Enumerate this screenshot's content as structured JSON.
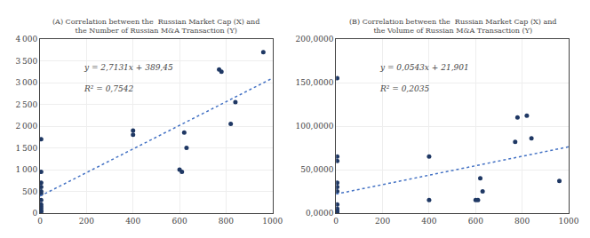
{
  "chart_data": [
    {
      "type": "scatter",
      "title": "(A) Correlation between the  Russian Market Cap (X) and\nthe Number of Russian M&A Transaction (Y)",
      "series": [
        {
          "type": "scatter",
          "color": "#1F3864",
          "x": [
            5,
            5,
            5,
            5,
            5,
            5,
            5,
            5,
            5,
            5,
            5,
            5,
            400,
            400,
            600,
            610,
            620,
            630,
            770,
            780,
            820,
            840,
            960
          ],
          "values": [
            1700,
            950,
            700,
            600,
            500,
            450,
            300,
            200,
            150,
            100,
            50,
            30,
            1900,
            1800,
            1000,
            950,
            1850,
            1500,
            3300,
            3250,
            2050,
            2550,
            3700
          ]
        },
        {
          "type": "line",
          "color": "#4472C4",
          "line_style": "dotted",
          "x": [
            0,
            1000
          ],
          "values": [
            389.45,
            3102.55
          ]
        }
      ],
      "annotations": [
        "y = 2,7131x + 389,45",
        "R² = 0,7542"
      ],
      "xlim": [
        0,
        1000
      ],
      "xticks": [
        0,
        200,
        400,
        600,
        800,
        1000
      ],
      "ylim": [
        0,
        4000
      ],
      "yticks": [
        0,
        500,
        {
          "value": 1000,
          "label": "1 000"
        },
        {
          "value": 1500,
          "label": "1 500"
        },
        {
          "value": 2000,
          "label": "2 000"
        },
        {
          "value": 2500,
          "label": "2 500"
        },
        {
          "value": 3000,
          "label": "3 000"
        },
        {
          "value": 3500,
          "label": "3 500"
        },
        {
          "value": 4000,
          "label": "4 000"
        }
      ],
      "grid": true
    },
    {
      "type": "scatter",
      "title": "(B) Correlation between the  Russian Market Cap (X) and\nthe Volume of Russian M&A Transaction (Y)",
      "series": [
        {
          "type": "scatter",
          "color": "#1F3864",
          "x": [
            5,
            5,
            5,
            5,
            5,
            5,
            5,
            5,
            5,
            5,
            5,
            400,
            400,
            600,
            610,
            620,
            630,
            770,
            780,
            820,
            840,
            960
          ],
          "values": [
            155000,
            65000,
            60000,
            35000,
            30000,
            25000,
            10000,
            5000,
            3000,
            1000,
            500,
            65000,
            15000,
            15000,
            15000,
            40000,
            25000,
            82000,
            110000,
            112000,
            86000,
            37000
          ]
        },
        {
          "type": "line",
          "color": "#4472C4",
          "line_style": "dotted",
          "x": [
            0,
            1000
          ],
          "values": [
            21901,
            76201
          ]
        }
      ],
      "annotations": [
        "y = 0,0543x + 21,901",
        "R² = 0,2035"
      ],
      "xlim": [
        0,
        1000
      ],
      "xticks": [
        0,
        200,
        400,
        600,
        800,
        1000
      ],
      "ylim": [
        0,
        200000
      ],
      "yticks": [
        {
          "value": 0,
          "label": "0,0000"
        },
        {
          "value": 50000,
          "label": "50,0000"
        },
        {
          "value": 100000,
          "label": "100,0000"
        },
        {
          "value": 150000,
          "label": "150,0000"
        },
        {
          "value": 200000,
          "label": "200,0000"
        }
      ],
      "grid": true
    }
  ]
}
